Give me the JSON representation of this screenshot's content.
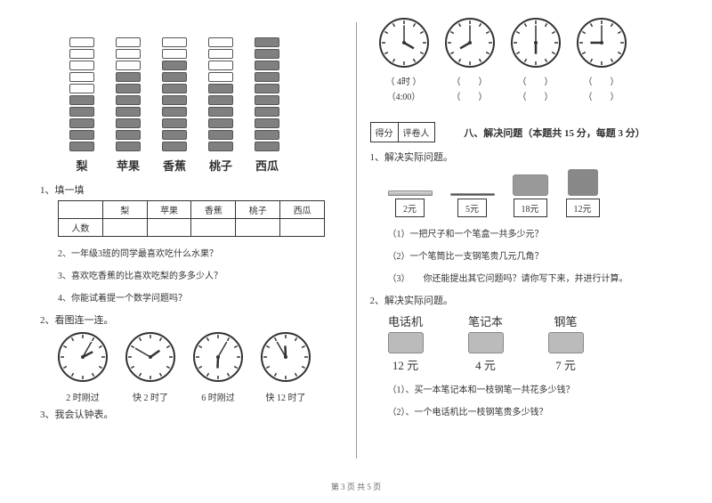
{
  "left": {
    "chart": {
      "total_slots": 10,
      "fruits": [
        {
          "label": "梨",
          "filled": 5
        },
        {
          "label": "苹果",
          "filled": 7
        },
        {
          "label": "香蕉",
          "filled": 8
        },
        {
          "label": "桃子",
          "filled": 6
        },
        {
          "label": "西瓜",
          "filled": 10
        }
      ],
      "filled_color": "#808080",
      "empty_color": "#ffffff",
      "border_color": "#555555"
    },
    "q1_title": "1、填一填",
    "table_row_header": "人数",
    "q2": "2、一年级3班的同学最喜欢吃什么水果？",
    "q3": "3、喜欢吃香蕉的比喜欢吃梨的多多少人？",
    "q4": "4、你能试着提一个数学问题吗？",
    "sec2": "2、看图连一连。",
    "clocks": [
      {
        "h": 2,
        "m": 5,
        "cap": "2 时刚过"
      },
      {
        "h": 1,
        "m": 50,
        "cap": "快 2 时了"
      },
      {
        "h": 6,
        "m": 5,
        "cap": "6 时刚过"
      },
      {
        "h": 11,
        "m": 55,
        "cap": "快 12 时了"
      }
    ],
    "sec3": "3、我会认钟表。"
  },
  "right": {
    "clocks": [
      {
        "h": 4,
        "m": 0,
        "cap1": "（ 4时 ）",
        "cap2": "（4:00）"
      },
      {
        "h": 8,
        "m": 0,
        "cap1": "（　　）",
        "cap2": "（　　）"
      },
      {
        "h": 6,
        "m": 0,
        "cap1": "（　　）",
        "cap2": "（　　）"
      },
      {
        "h": 9,
        "m": 0,
        "cap1": "（　　）",
        "cap2": "（　　）"
      }
    ],
    "score_labels": [
      "得分",
      "评卷人"
    ],
    "section8": "八、解决问题（本题共 15 分，每题 3 分）",
    "p1_title": "1、解决实际问题。",
    "p1_items": [
      {
        "name": "尺子",
        "price": "2元"
      },
      {
        "name": "钢笔",
        "price": "5元"
      },
      {
        "name": "笔盒",
        "price": "18元"
      },
      {
        "name": "笔筒",
        "price": "12元"
      }
    ],
    "p1_q1": "（1）一把尺子和一个笔盒一共多少元？",
    "p1_q2": "（2）一个笔筒比一支钢笔贵几元几角？",
    "p1_q3": "（3）　　你还能提出其它问题吗？请你写下来，并进行计算。",
    "p2_title": "2、解决实际问题。",
    "p2_items": [
      {
        "label": "电话机",
        "price": "12 元"
      },
      {
        "label": "笔记本",
        "price": "4 元"
      },
      {
        "label": "钢笔",
        "price": "7 元"
      }
    ],
    "p2_q1": "（1）、买一本笔记本和一枝钢笔一共花多少钱？",
    "p2_q2": "（2）、一个电话机比一枝钢笔贵多少钱？"
  },
  "footer": "第 3 页 共 5 页"
}
